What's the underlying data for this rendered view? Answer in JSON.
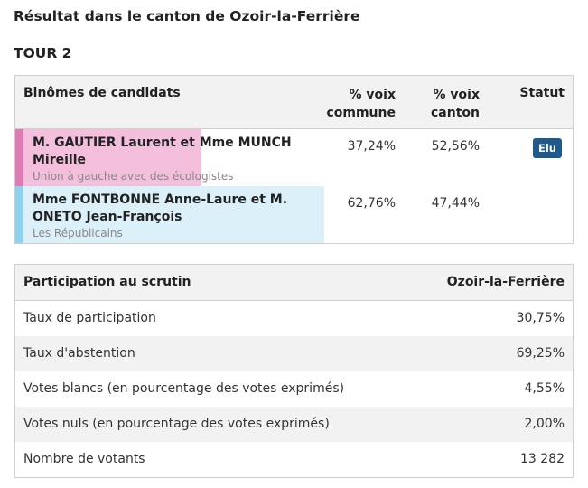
{
  "page": {
    "title": "Résultat dans le canton de Ozoir-la-Ferrière",
    "round": "TOUR 2"
  },
  "candidates_table": {
    "headers": {
      "name": "Binômes de candidats",
      "commune_pct": "% voix commune",
      "canton_pct": "% voix canton",
      "status": "Statut"
    },
    "rows": [
      {
        "name": "M. GAUTIER Laurent et Mme MUNCH Mireille",
        "party": "Union à gauche avec des écologistes",
        "commune_pct": "37,24%",
        "canton_pct": "52,56%",
        "commune_share": 37.24,
        "status": "Elu",
        "bar_color": "#e07ab4",
        "bg_color": "#f4bedd"
      },
      {
        "name": "Mme FONTBONNE Anne-Laure et M. ONETO Jean-François",
        "party": "Les Républicains",
        "commune_pct": "62,76%",
        "canton_pct": "47,44%",
        "commune_share": 62.76,
        "status": "",
        "bar_color": "#8fd0ee",
        "bg_color": "#dcf0f9"
      }
    ]
  },
  "participation_table": {
    "headers": {
      "label": "Participation au scrutin",
      "commune": "Ozoir-la-Ferrière"
    },
    "rows": [
      {
        "label": "Taux de participation",
        "value": "30,75%"
      },
      {
        "label": "Taux d'abstention",
        "value": "69,25%"
      },
      {
        "label": "Votes blancs (en pourcentage des votes exprimés)",
        "value": "4,55%"
      },
      {
        "label": "Votes nuls (en pourcentage des votes exprimés)",
        "value": "2,00%"
      },
      {
        "label": "Nombre de votants",
        "value": "13 282"
      }
    ]
  },
  "colors": {
    "elected_badge": "#1f5a8c"
  }
}
